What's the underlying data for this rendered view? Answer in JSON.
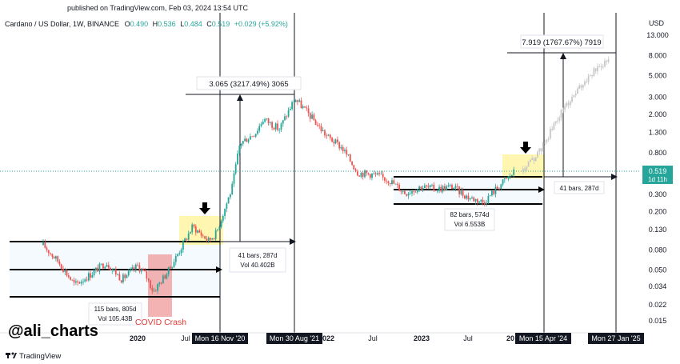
{
  "header": {
    "published": "published on TradingView.com, Feb 03, 2024 13:54 UTC",
    "symbol": "Cardano / US Dollar, 1W, BINANCE",
    "o_label": "O",
    "o_value": "0.490",
    "h_label": "H",
    "h_value": "0.536",
    "l_label": "L",
    "l_value": "0.484",
    "c_label": "C",
    "c_value": "0.519",
    "change": "+0.029 (+5.92%)"
  },
  "axis": {
    "currency": "USD",
    "price_ticks": [
      "13.000",
      "8.000",
      "5.000",
      "3.000",
      "2.000",
      "1.300",
      "0.800",
      "0.300",
      "0.200",
      "0.130",
      "0.080",
      "0.050",
      "0.034",
      "0.022",
      "0.015"
    ],
    "time_labels": [
      "2020",
      "Jul",
      "2022",
      "Jul",
      "2023",
      "Jul",
      "20"
    ],
    "date_badges": [
      "Mon 16 Nov '20",
      "Mon 30 Aug '21",
      "Mon 15 Apr '24",
      "Mon 27 Jan '25"
    ],
    "last_price": "0.519",
    "countdown": "1d 11h"
  },
  "annotations": {
    "range_1": "3.065 (3217.49%) 3065",
    "range_2": "7.919 (1767.67%) 7919",
    "bars_1": "41 bars, 287d",
    "vol_1": "Vol 40.402B",
    "bars_2": "41 bars, 287d",
    "bars_3": "115 bars, 805d",
    "vol_3": "Vol 105.43B",
    "bars_4": "82 bars, 574d",
    "vol_4": "Vol 6.553B",
    "covid": "COVID Crash"
  },
  "watermark": "@ali_charts",
  "brand": "TradingView",
  "colors": {
    "up": "#26a69a",
    "down": "#ef5350",
    "projection": "#c8c8c8",
    "highlight_yellow": "#fff59d",
    "covid_red": "#ef9a9a",
    "badge_bg": "#131722"
  },
  "chart_data": {
    "type": "candlestick",
    "scale": "log",
    "title": "Cardano / US Dollar, 1W, BINANCE",
    "ylabel": "USD",
    "ylim": [
      0.012,
      16
    ],
    "series": [
      {
        "x": [
          "2019-01",
          "2019-03",
          "2019-05",
          "2019-07",
          "2019-09",
          "2019-11",
          "2020-01",
          "2020-02",
          "2020-03",
          "2020-05",
          "2020-07",
          "2020-08",
          "2020-10",
          "2020-11",
          "2021-01",
          "2021-02",
          "2021-04",
          "2021-05",
          "2021-07",
          "2021-09",
          "2021-11",
          "2022-01",
          "2022-03",
          "2022-05",
          "2022-07",
          "2022-09",
          "2022-11",
          "2023-01",
          "2023-03",
          "2023-05",
          "2023-07",
          "2023-09",
          "2023-11",
          "2024-01"
        ],
        "values": [
          0.09,
          0.06,
          0.035,
          0.045,
          0.06,
          0.04,
          0.055,
          0.045,
          0.03,
          0.05,
          0.1,
          0.14,
          0.1,
          0.12,
          0.35,
          1.0,
          1.3,
          1.8,
          1.4,
          2.9,
          1.9,
          1.2,
          0.9,
          0.5,
          0.48,
          0.42,
          0.31,
          0.36,
          0.34,
          0.36,
          0.28,
          0.25,
          0.37,
          0.52
        ]
      },
      {
        "name": "",
        "x": [
          "2024-02",
          "2024-04",
          "2024-07",
          "2024-10",
          "2025-01"
        ],
        "values": [
          0.52,
          0.8,
          2.2,
          4.5,
          7.9
        ]
      }
    ],
    "levels": [
      {
        "value": 0.098
      },
      {
        "value": 0.052
      },
      {
        "value": 0.027
      },
      {
        "value": 0.39
      },
      {
        "value": 0.33
      },
      {
        "value": 0.24
      },
      {
        "value": 0.39
      },
      {
        "value": 0.73
      }
    ]
  }
}
